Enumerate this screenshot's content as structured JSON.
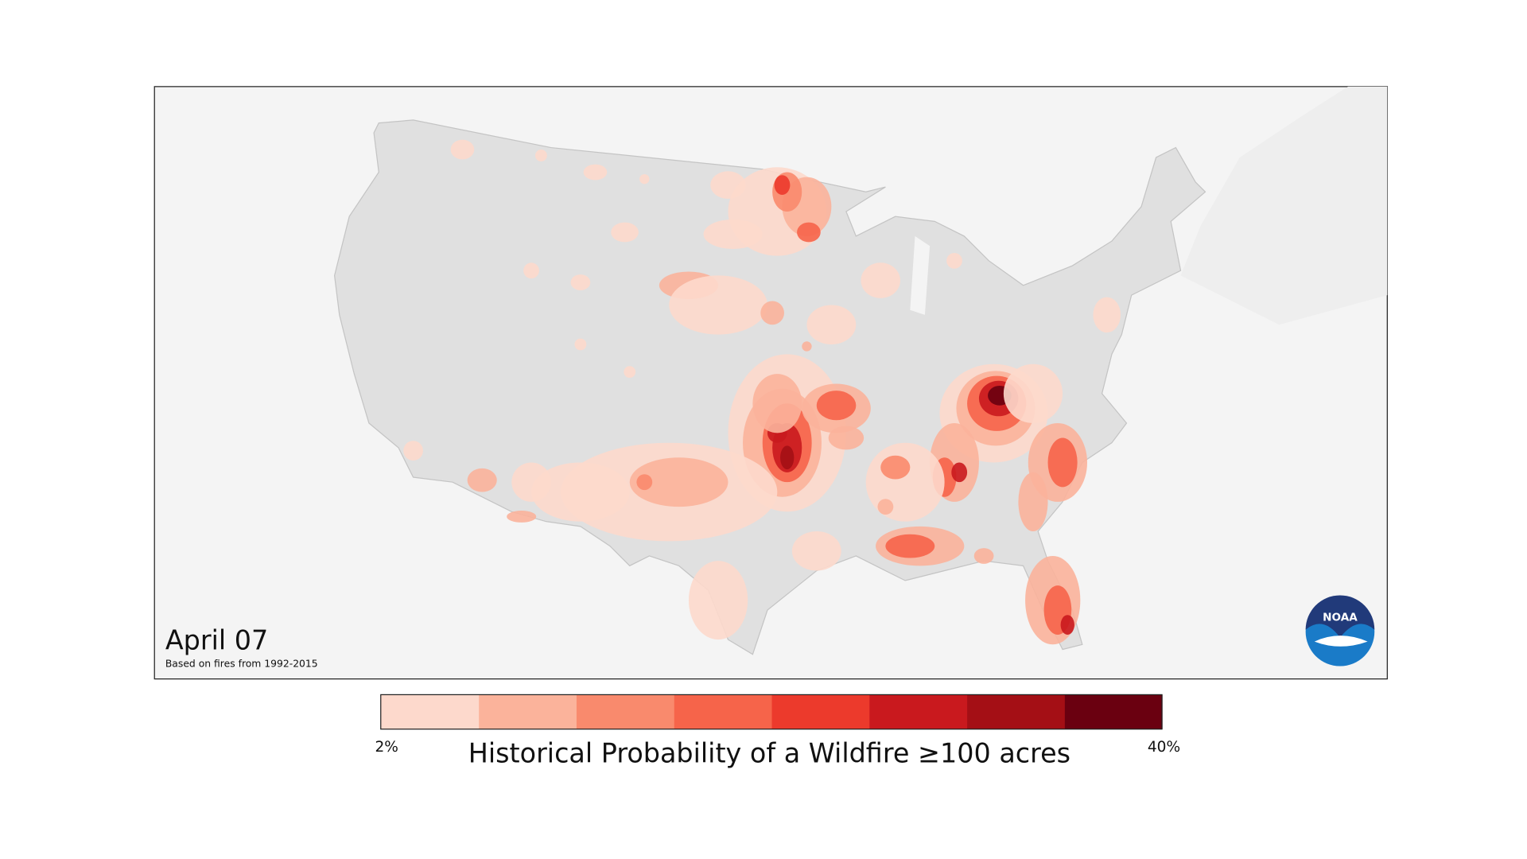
{
  "map": {
    "date": "April 07",
    "note": "Based on fires from 1992-2015",
    "logo": "NOAA"
  },
  "legend": {
    "title": "Historical Probability of a Wildfire ≥100 acres",
    "min_label": "2%",
    "max_label": "40%",
    "colors": [
      "#fdd9cc",
      "#fbb39b",
      "#f98a6d",
      "#f6644a",
      "#ec3a2c",
      "#c9191e",
      "#a40f15",
      "#6a0010"
    ]
  }
}
